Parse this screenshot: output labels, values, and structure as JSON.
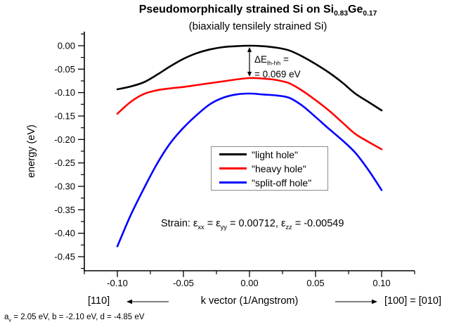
{
  "header": {
    "title_part1": "Pseudomorphically strained Si on Si",
    "title_si_sub": "0.83",
    "title_part2": "Ge",
    "title_ge_sub": "0.17",
    "subtitle": "(biaxially tensilely strained Si)"
  },
  "chart_data": {
    "type": "line",
    "title": "Pseudomorphically strained Si on Si0.83Ge0.17",
    "subtitle": "(biaxially tensilely strained Si)",
    "xlabel": "k vector (1/Angstrom)",
    "ylabel": "energy (eV)",
    "xlim": [
      -0.125,
      0.125
    ],
    "ylim": [
      -0.48,
      0.03
    ],
    "grid": false,
    "legend_position": "inside-center-right",
    "direction_left": "[110]",
    "direction_right": "[100] = [010]",
    "x_ticks": [
      -0.1,
      -0.05,
      0,
      0.05,
      0.1
    ],
    "x_tick_labels": [
      "-0.10",
      "-0.05",
      "0.00",
      "0.05",
      "0.10"
    ],
    "x_minor_ticks": [
      -0.125,
      -0.075,
      -0.025,
      0.025,
      0.075,
      0.125
    ],
    "y_ticks": [
      0,
      -0.05,
      -0.1,
      -0.15,
      -0.2,
      -0.25,
      -0.3,
      -0.35,
      -0.4,
      -0.45
    ],
    "y_tick_labels": [
      "0.00",
      "-0.05",
      "-0.10",
      "-0.15",
      "-0.20",
      "-0.25",
      "-0.30",
      "-0.35",
      "-0.40",
      "-0.45"
    ],
    "y_minor_ticks": [
      0.025,
      -0.025,
      -0.075,
      -0.125,
      -0.175,
      -0.225,
      -0.275,
      -0.325,
      -0.375,
      -0.425,
      -0.475
    ],
    "annotations_text": [
      "ΔElh-hh = 0.069 eV",
      "Strain: εxx = εyy = 0.00712, εzz = -0.00549"
    ],
    "series": [
      {
        "id": "light-hole",
        "name": "\"light hole\"",
        "color": "#000000",
        "x": [
          -0.1,
          -0.09,
          -0.08,
          -0.07,
          -0.06,
          -0.05,
          -0.04,
          -0.03,
          -0.02,
          -0.01,
          0,
          0.01,
          0.02,
          0.03,
          0.04,
          0.05,
          0.06,
          0.07,
          0.08,
          0.09,
          0.1
        ],
        "y": [
          -0.093,
          -0.087,
          -0.078,
          -0.062,
          -0.044,
          -0.028,
          -0.016,
          -0.008,
          -0.003,
          -0.001,
          0,
          -0.001,
          -0.004,
          -0.01,
          -0.023,
          -0.039,
          -0.057,
          -0.078,
          -0.102,
          -0.12,
          -0.138
        ]
      },
      {
        "id": "heavy-hole",
        "name": "\"heavy hole\"",
        "color": "#ff0000",
        "x": [
          -0.1,
          -0.09,
          -0.08,
          -0.07,
          -0.06,
          -0.05,
          -0.04,
          -0.03,
          -0.02,
          -0.01,
          0,
          0.01,
          0.02,
          0.03,
          0.04,
          0.05,
          0.06,
          0.07,
          0.08,
          0.09,
          0.1
        ],
        "y": [
          -0.145,
          -0.12,
          -0.103,
          -0.095,
          -0.091,
          -0.088,
          -0.084,
          -0.08,
          -0.076,
          -0.072,
          -0.069,
          -0.07,
          -0.073,
          -0.08,
          -0.096,
          -0.116,
          -0.138,
          -0.163,
          -0.188,
          -0.205,
          -0.221
        ]
      },
      {
        "id": "split-off-hole",
        "name": "\"split-off hole\"",
        "color": "#0000ff",
        "x": [
          -0.1,
          -0.09,
          -0.08,
          -0.07,
          -0.06,
          -0.05,
          -0.04,
          -0.03,
          -0.02,
          -0.01,
          0,
          0.01,
          0.02,
          0.03,
          0.04,
          0.05,
          0.06,
          0.07,
          0.08,
          0.09,
          0.1
        ],
        "y": [
          -0.428,
          -0.362,
          -0.305,
          -0.252,
          -0.208,
          -0.175,
          -0.148,
          -0.125,
          -0.111,
          -0.104,
          -0.102,
          -0.104,
          -0.106,
          -0.111,
          -0.128,
          -0.152,
          -0.177,
          -0.201,
          -0.228,
          -0.265,
          -0.308
        ]
      }
    ]
  },
  "annotations": {
    "delta_e": {
      "symbol": "ΔE",
      "subscript": "lh-hh",
      "suffix": " =",
      "line2": "= 0.069 eV"
    },
    "strain": {
      "lead": "Strain: ",
      "epsilon": "ε",
      "sub_xx": "xx",
      "eq1": " = ",
      "sub_yy": "yy",
      "eq2": " = 0.00712, ",
      "sub_zz": "zz",
      "eq3": " = -0.00549"
    }
  },
  "footnote": {
    "symbol": "a",
    "subscript": "v",
    "rest": " = 2.05 eV, b = -2.10 eV, d = -4.85 eV"
  }
}
